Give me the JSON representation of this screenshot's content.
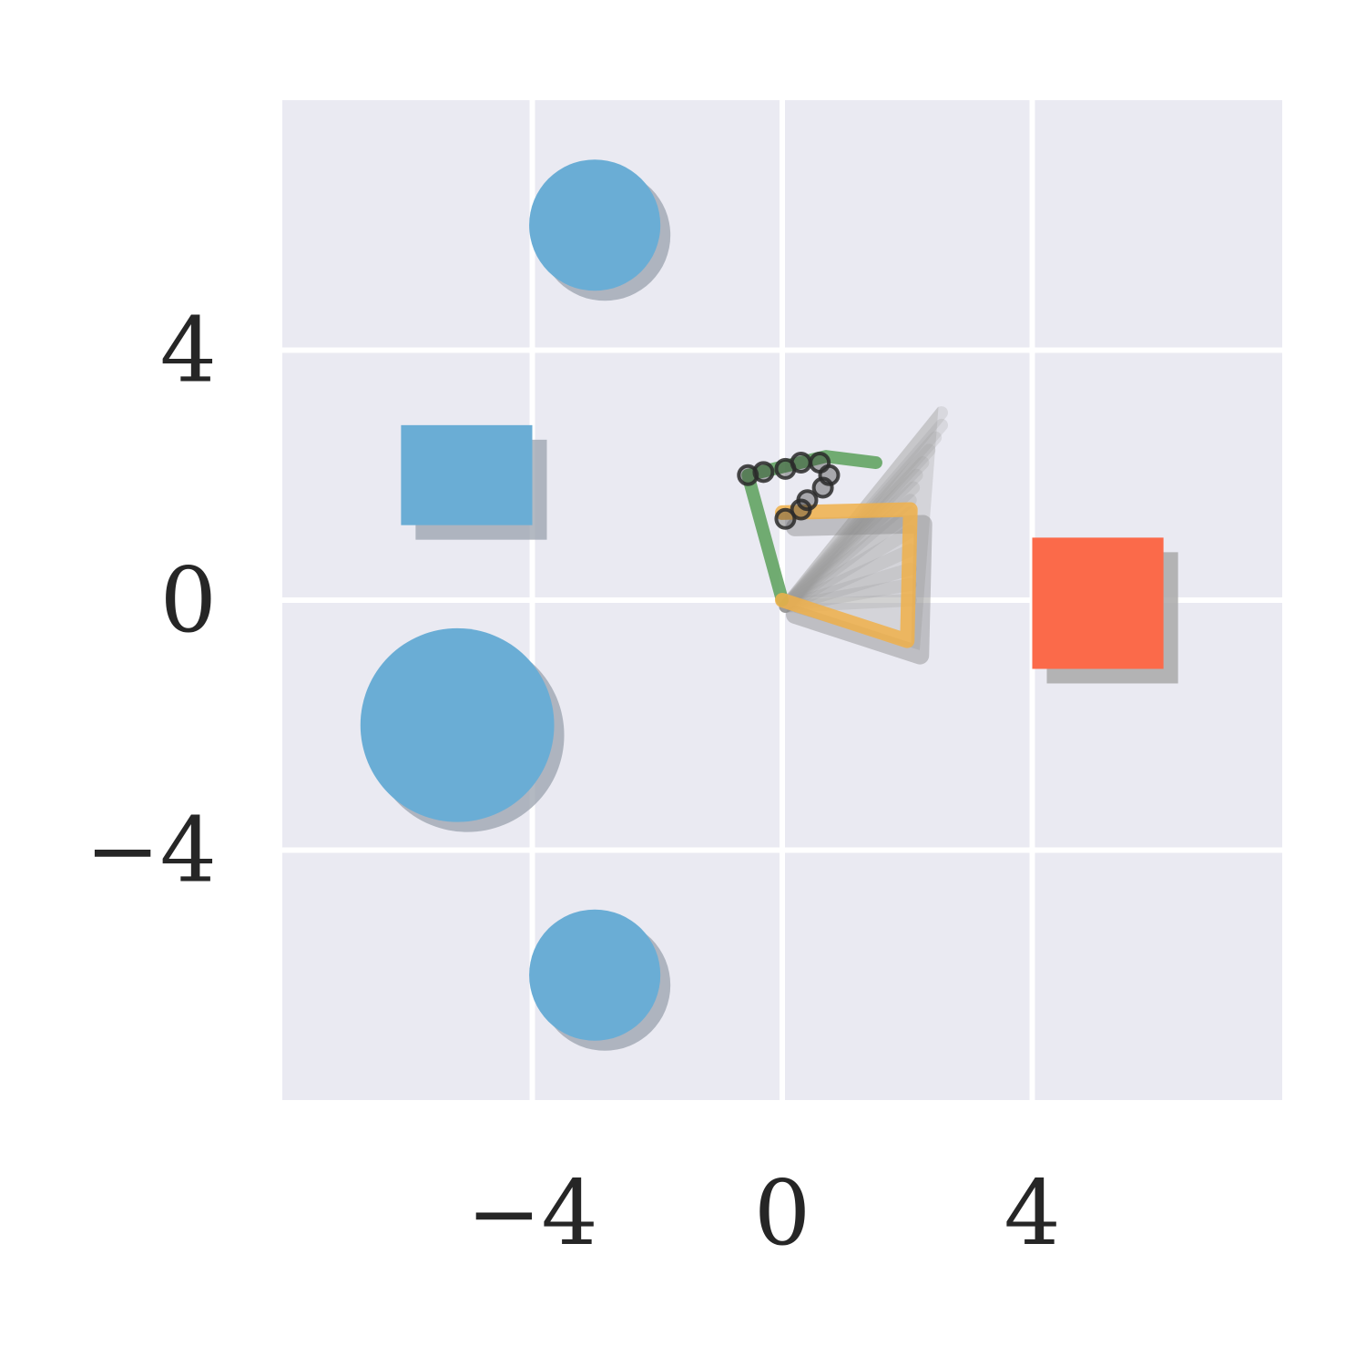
{
  "chart_data": {
    "type": "scatter",
    "title": "",
    "xlabel": "",
    "ylabel": "",
    "xlim": [
      -8,
      8
    ],
    "ylim": [
      -8,
      8
    ],
    "xticks": [
      -4,
      0,
      4
    ],
    "yticks": [
      -4,
      0,
      4
    ],
    "xtick_labels": [
      "−4",
      "0",
      "4"
    ],
    "ytick_labels": [
      "−4",
      "0",
      "4"
    ],
    "grid": true,
    "colors": {
      "background": "#eaeaf2",
      "grid": "#ffffff",
      "obstacle": "#6aadd5",
      "goal": "#fb6a4a",
      "shadow": "#9aa1ad",
      "path_green": "#5aa05a",
      "path_orange": "#f0b04a",
      "fan": "#9a9a9a",
      "marker": "#2a2a2a",
      "tick_text": "#262626"
    },
    "obstacles": [
      {
        "shape": "circle",
        "cx": -3,
        "cy": 6,
        "r": 1.05
      },
      {
        "shape": "rect",
        "x0": -6.1,
        "y0": 1.2,
        "x1": -4,
        "y1": 2.8
      },
      {
        "shape": "circle",
        "cx": -5.2,
        "cy": -2,
        "r": 1.55
      },
      {
        "shape": "circle",
        "cx": -3,
        "cy": -6,
        "r": 1.05
      }
    ],
    "goal": {
      "shape": "rect",
      "x0": 4,
      "y0": -1.1,
      "x1": 6.1,
      "y1": 1
    },
    "green_path": [
      [
        1.5,
        2.2
      ],
      [
        0.7,
        2.3
      ],
      [
        -0.55,
        2
      ],
      [
        0,
        0
      ]
    ],
    "orange_path": [
      [
        0,
        0
      ],
      [
        2,
        -0.65
      ],
      [
        2.05,
        1.45
      ],
      [
        0,
        1.4
      ]
    ],
    "fan_tips": [
      [
        2.55,
        3.0
      ],
      [
        2.55,
        2.8
      ],
      [
        2.45,
        2.6
      ],
      [
        2.35,
        2.4
      ],
      [
        2.25,
        2.2
      ],
      [
        2.15,
        2.0
      ],
      [
        2.1,
        1.8
      ],
      [
        2.05,
        1.6
      ],
      [
        2.05,
        1.4
      ],
      [
        2.05,
        1.1
      ],
      [
        2.05,
        0.8
      ],
      [
        2.05,
        0.5
      ],
      [
        2.05,
        0.25
      ],
      [
        2.05,
        0.0
      ]
    ],
    "fan_polygon": [
      [
        0,
        0
      ],
      [
        2.5,
        3.1
      ],
      [
        2.2,
        -0.8
      ],
      [
        0.2,
        -0.2
      ]
    ],
    "waypoints": [
      [
        -0.55,
        2.0
      ],
      [
        -0.3,
        2.05
      ],
      [
        0.05,
        2.1
      ],
      [
        0.3,
        2.2
      ],
      [
        0.6,
        2.2
      ],
      [
        0.75,
        2.0
      ],
      [
        0.65,
        1.8
      ],
      [
        0.4,
        1.6
      ],
      [
        0.3,
        1.45
      ],
      [
        0.05,
        1.3
      ]
    ]
  }
}
